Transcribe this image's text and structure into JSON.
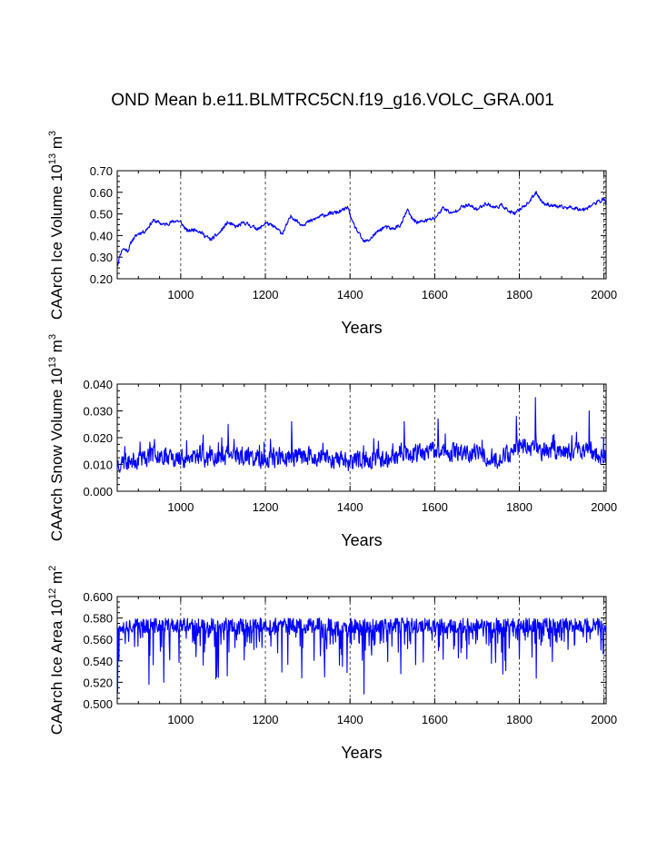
{
  "figure": {
    "title": "OND Mean b.e11.BLMTRC5CN.f19_g16.VOLC_GRA.001"
  },
  "chart_data": [
    {
      "type": "line",
      "title": "OND Mean b.e11.BLMTRC5CN.f19_g16.VOLC_GRA.001",
      "xlabel": "Years",
      "ylabel_main": "CAArch Ice Volume 10",
      "ylabel_exp1": "13",
      "ylabel_unit": " m",
      "ylabel_exp2": "3",
      "xlim": [
        850,
        2005
      ],
      "ylim": [
        0.2,
        0.7
      ],
      "grid_x": [
        1000,
        1200,
        1400,
        1600,
        1800,
        2000
      ],
      "xticks": [
        1000,
        1200,
        1400,
        1600,
        1800,
        2000
      ],
      "xtick_labels": [
        "1000",
        "1200",
        "1400",
        "1600",
        "1800",
        "2000"
      ],
      "yticks": [
        0.2,
        0.3,
        0.4,
        0.5,
        0.6,
        0.7
      ],
      "ytick_labels": [
        "0.20",
        "0.30",
        "0.40",
        "0.50",
        "0.60",
        "0.70"
      ],
      "color": "#0000ff",
      "noise": 0.012,
      "seed": 11,
      "anchors": [
        [
          850,
          0.26
        ],
        [
          856,
          0.31
        ],
        [
          862,
          0.34
        ],
        [
          875,
          0.33
        ],
        [
          885,
          0.38
        ],
        [
          900,
          0.41
        ],
        [
          915,
          0.42
        ],
        [
          935,
          0.47
        ],
        [
          960,
          0.45
        ],
        [
          990,
          0.47
        ],
        [
          1000,
          0.46
        ],
        [
          1015,
          0.42
        ],
        [
          1035,
          0.43
        ],
        [
          1050,
          0.41
        ],
        [
          1070,
          0.38
        ],
        [
          1090,
          0.41
        ],
        [
          1110,
          0.46
        ],
        [
          1130,
          0.44
        ],
        [
          1150,
          0.46
        ],
        [
          1170,
          0.44
        ],
        [
          1185,
          0.43
        ],
        [
          1200,
          0.46
        ],
        [
          1220,
          0.44
        ],
        [
          1240,
          0.41
        ],
        [
          1260,
          0.49
        ],
        [
          1285,
          0.45
        ],
        [
          1310,
          0.47
        ],
        [
          1330,
          0.49
        ],
        [
          1350,
          0.5
        ],
        [
          1375,
          0.51
        ],
        [
          1395,
          0.53
        ],
        [
          1405,
          0.46
        ],
        [
          1420,
          0.41
        ],
        [
          1432,
          0.37
        ],
        [
          1445,
          0.38
        ],
        [
          1460,
          0.41
        ],
        [
          1480,
          0.44
        ],
        [
          1500,
          0.43
        ],
        [
          1520,
          0.45
        ],
        [
          1535,
          0.52
        ],
        [
          1545,
          0.48
        ],
        [
          1560,
          0.46
        ],
        [
          1580,
          0.47
        ],
        [
          1600,
          0.48
        ],
        [
          1620,
          0.53
        ],
        [
          1640,
          0.5
        ],
        [
          1660,
          0.53
        ],
        [
          1680,
          0.54
        ],
        [
          1700,
          0.52
        ],
        [
          1720,
          0.55
        ],
        [
          1740,
          0.53
        ],
        [
          1760,
          0.54
        ],
        [
          1775,
          0.51
        ],
        [
          1790,
          0.5
        ],
        [
          1805,
          0.53
        ],
        [
          1820,
          0.55
        ],
        [
          1840,
          0.6
        ],
        [
          1855,
          0.55
        ],
        [
          1875,
          0.54
        ],
        [
          1900,
          0.53
        ],
        [
          1925,
          0.53
        ],
        [
          1950,
          0.52
        ],
        [
          1970,
          0.54
        ],
        [
          1990,
          0.56
        ],
        [
          2000,
          0.57
        ],
        [
          2005,
          0.54
        ]
      ]
    },
    {
      "type": "line",
      "xlabel": "Years",
      "ylabel_main": "CAArch Snow Volume 10",
      "ylabel_exp1": "13",
      "ylabel_unit": " m",
      "ylabel_exp2": "3",
      "xlim": [
        850,
        2005
      ],
      "ylim": [
        0.0,
        0.04
      ],
      "grid_x": [
        1000,
        1200,
        1400,
        1600,
        1800,
        2000
      ],
      "xticks": [
        1000,
        1200,
        1400,
        1600,
        1800,
        2000
      ],
      "xtick_labels": [
        "1000",
        "1200",
        "1400",
        "1600",
        "1800",
        "2000"
      ],
      "yticks": [
        0.0,
        0.01,
        0.02,
        0.03,
        0.04
      ],
      "ytick_labels": [
        "0.000",
        "0.010",
        "0.020",
        "0.030",
        "0.040"
      ],
      "color": "#0000ff",
      "noise": 0.0042,
      "seed": 23,
      "anchors": [
        [
          850,
          0.01
        ],
        [
          900,
          0.012
        ],
        [
          950,
          0.014
        ],
        [
          1000,
          0.012
        ],
        [
          1100,
          0.013
        ],
        [
          1200,
          0.012
        ],
        [
          1300,
          0.013
        ],
        [
          1400,
          0.011
        ],
        [
          1500,
          0.013
        ],
        [
          1600,
          0.015
        ],
        [
          1700,
          0.014
        ],
        [
          1750,
          0.012
        ],
        [
          1800,
          0.017
        ],
        [
          1850,
          0.015
        ],
        [
          1900,
          0.014
        ],
        [
          1950,
          0.015
        ],
        [
          2005,
          0.013
        ]
      ],
      "spikes": [
        [
          1838,
          0.035
        ],
        [
          1965,
          0.03
        ],
        [
          1793,
          0.028
        ],
        [
          1528,
          0.026
        ],
        [
          1262,
          0.026
        ],
        [
          1112,
          0.025
        ],
        [
          1608,
          0.027
        ]
      ]
    },
    {
      "type": "line",
      "xlabel": "Years",
      "ylabel_main": "CAArch Ice Area 10",
      "ylabel_exp1": "12",
      "ylabel_unit": " m",
      "ylabel_exp2": "2",
      "xlim": [
        850,
        2005
      ],
      "ylim": [
        0.5,
        0.6
      ],
      "grid_x": [
        1000,
        1200,
        1400,
        1600,
        1800,
        2000
      ],
      "xticks": [
        1000,
        1200,
        1400,
        1600,
        1800,
        2000
      ],
      "xtick_labels": [
        "1000",
        "1200",
        "1400",
        "1600",
        "1800",
        "2000"
      ],
      "yticks": [
        0.5,
        0.52,
        0.54,
        0.56,
        0.58,
        0.6
      ],
      "ytick_labels": [
        "0.500",
        "0.520",
        "0.540",
        "0.560",
        "0.580",
        "0.600"
      ],
      "color": "#0000ff",
      "baseline": 0.573,
      "jitter": 0.007,
      "dip_prob": 0.22,
      "dip_max": 0.045,
      "seed": 37,
      "spikes": [
        [
          851,
          0.511
        ],
        [
          1433,
          0.509
        ],
        [
          1286,
          0.524
        ],
        [
          960,
          0.52
        ],
        [
          925,
          0.518
        ],
        [
          1085,
          0.525
        ],
        [
          1340,
          0.525
        ],
        [
          1520,
          0.528
        ],
        [
          1110,
          0.526
        ]
      ]
    }
  ]
}
